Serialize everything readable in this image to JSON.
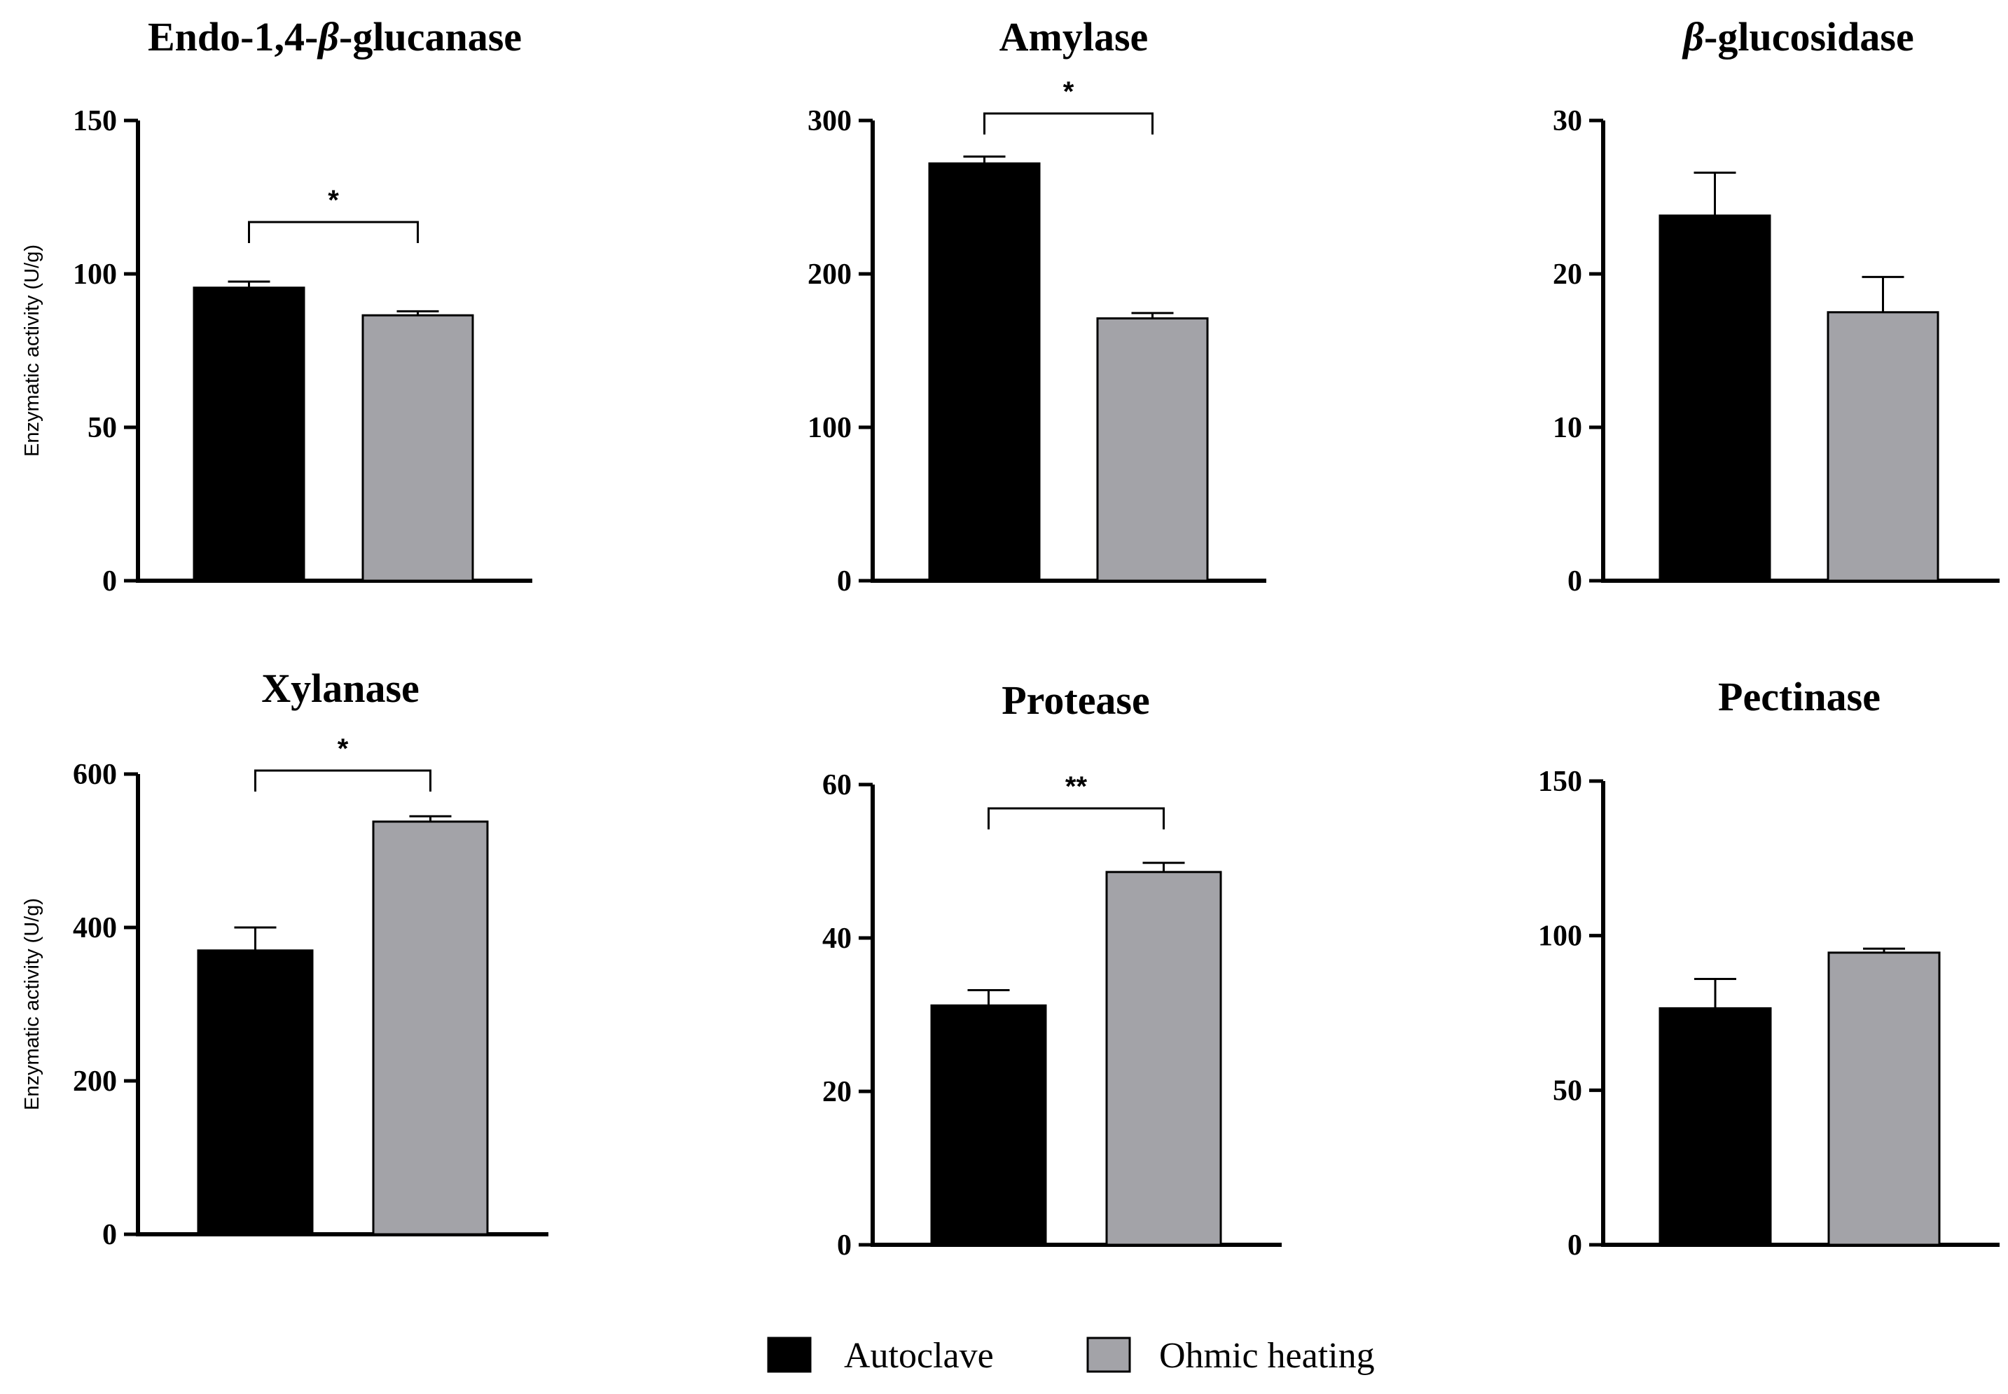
{
  "colors": {
    "autoclave": "#000000",
    "ohmic": "#a3a3a8",
    "axis": "#000000"
  },
  "legend": {
    "autoclave_label": "Autoclave",
    "ohmic_label": "Ohmic heating"
  },
  "chart_data": [
    {
      "type": "bar",
      "title_parts": [
        "Endo-1,4-",
        "β",
        "-glucanase"
      ],
      "ylabel": "Enzymatic activity (U/g)",
      "categories": [
        "Autoclave",
        "Ohmic heating"
      ],
      "values": [
        95.5,
        86.5
      ],
      "errors": [
        2,
        1.3
      ],
      "ylim": [
        0,
        150
      ],
      "yticks": [
        0,
        50,
        100,
        150
      ],
      "significance": "*"
    },
    {
      "type": "bar",
      "title_parts": [
        "Amylase"
      ],
      "ylabel": "",
      "categories": [
        "Autoclave",
        "Ohmic heating"
      ],
      "values": [
        272,
        171
      ],
      "errors": [
        4.5,
        3.5
      ],
      "ylim": [
        0,
        300
      ],
      "yticks": [
        0,
        100,
        200,
        300
      ],
      "significance": "*"
    },
    {
      "type": "bar",
      "title_parts": [
        "β",
        "-glucosidase"
      ],
      "ylabel": "",
      "categories": [
        "Autoclave",
        "Ohmic heating"
      ],
      "values": [
        23.8,
        17.5
      ],
      "errors": [
        2.8,
        2.3
      ],
      "ylim": [
        0,
        30
      ],
      "yticks": [
        0,
        10,
        20,
        30
      ],
      "significance": ""
    },
    {
      "type": "bar",
      "title_parts": [
        "Xylanase"
      ],
      "ylabel": "Enzymatic activity (U/g)",
      "categories": [
        "Autoclave",
        "Ohmic heating"
      ],
      "values": [
        370,
        538
      ],
      "errors": [
        30,
        7
      ],
      "ylim": [
        0,
        600
      ],
      "yticks": [
        0,
        200,
        400,
        600
      ],
      "significance": "*"
    },
    {
      "type": "bar",
      "title_parts": [
        "Protease"
      ],
      "ylabel": "",
      "categories": [
        "Autoclave",
        "Ohmic heating"
      ],
      "values": [
        31.2,
        48.6
      ],
      "errors": [
        2,
        1.2
      ],
      "ylim": [
        0,
        60
      ],
      "yticks": [
        0,
        20,
        40,
        60
      ],
      "significance": "**"
    },
    {
      "type": "bar",
      "title_parts": [
        "Pectinase"
      ],
      "ylabel": "",
      "categories": [
        "Autoclave",
        "Ohmic heating"
      ],
      "values": [
        76.5,
        94.5
      ],
      "errors": [
        9.5,
        1.3
      ],
      "ylim": [
        0,
        150
      ],
      "yticks": [
        0,
        50,
        100,
        150
      ],
      "significance": ""
    }
  ]
}
